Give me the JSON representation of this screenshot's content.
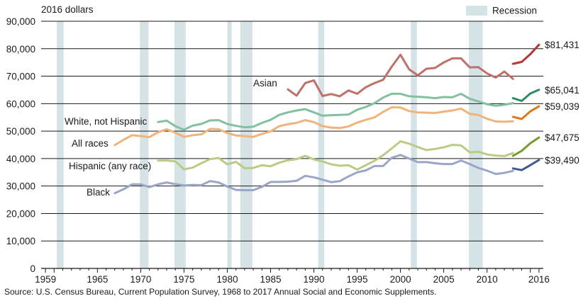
{
  "chart_data": {
    "type": "line",
    "title": "",
    "unit_label": "2016 dollars",
    "xlabel": "",
    "ylabel": "",
    "xlim": [
      1958.5,
      2016.5
    ],
    "ylim": [
      0,
      90000
    ],
    "x_ticks": [
      1959,
      1965,
      1970,
      1975,
      1980,
      1985,
      1990,
      1995,
      2000,
      2005,
      2010,
      2016
    ],
    "x_tick_labels": [
      "1959",
      "1965",
      "1970",
      "1975",
      "1980",
      "1985",
      "1990",
      "1995",
      "2000",
      "2005",
      "2010",
      "2016"
    ],
    "y_ticks": [
      0,
      10000,
      20000,
      30000,
      40000,
      50000,
      60000,
      70000,
      80000,
      90000
    ],
    "y_tick_labels": [
      "0",
      "10,000",
      "20,000",
      "30,000",
      "40,000",
      "50,000",
      "60,000",
      "70,000",
      "80,000",
      "90,000"
    ],
    "grid": "horizontal",
    "legend": {
      "label": "Recession",
      "position": "top-right",
      "color": "#d6e3e6"
    },
    "recessions": [
      [
        1960.3,
        1961.1
      ],
      [
        1969.9,
        1970.9
      ],
      [
        1973.9,
        1975.2
      ],
      [
        1980.0,
        1980.5
      ],
      [
        1981.5,
        1982.9
      ],
      [
        1990.5,
        1991.2
      ],
      [
        2001.2,
        2001.9
      ],
      [
        2007.9,
        2009.5
      ]
    ],
    "series": [
      {
        "name": "Asian",
        "color": "#c0706a",
        "break_color": "#b23838",
        "values": [
          [
            1987,
            65200
          ],
          [
            1988,
            62900
          ],
          [
            1989,
            67500
          ],
          [
            1990,
            68500
          ],
          [
            1991,
            62800
          ],
          [
            1992,
            63500
          ],
          [
            1993,
            62700
          ],
          [
            1994,
            64800
          ],
          [
            1995,
            63600
          ],
          [
            1996,
            66000
          ],
          [
            1997,
            67500
          ],
          [
            1998,
            68700
          ],
          [
            1999,
            73500
          ],
          [
            2000,
            77800
          ],
          [
            2001,
            72500
          ],
          [
            2002,
            70300
          ],
          [
            2003,
            72700
          ],
          [
            2004,
            73000
          ],
          [
            2005,
            75000
          ],
          [
            2006,
            76500
          ],
          [
            2007,
            76500
          ],
          [
            2008,
            73200
          ],
          [
            2009,
            73300
          ],
          [
            2010,
            71000
          ],
          [
            2011,
            69500
          ],
          [
            2012,
            71700
          ],
          [
            2013,
            69000
          ]
        ],
        "values_after_break": [
          [
            2013,
            74500
          ],
          [
            2014,
            75200
          ],
          [
            2015,
            78000
          ],
          [
            2016,
            81431
          ]
        ],
        "end_label": "$81,431"
      },
      {
        "name": "White, not Hispanic",
        "color": "#82c0a0",
        "break_color": "#2e8b62",
        "values": [
          [
            1972,
            53300
          ],
          [
            1973,
            53800
          ],
          [
            1974,
            51800
          ],
          [
            1975,
            50500
          ],
          [
            1976,
            52000
          ],
          [
            1977,
            52600
          ],
          [
            1978,
            53900
          ],
          [
            1979,
            54000
          ],
          [
            1980,
            52600
          ],
          [
            1981,
            51900
          ],
          [
            1982,
            51400
          ],
          [
            1983,
            51600
          ],
          [
            1984,
            53000
          ],
          [
            1985,
            54100
          ],
          [
            1986,
            55900
          ],
          [
            1987,
            56800
          ],
          [
            1988,
            57500
          ],
          [
            1989,
            58000
          ],
          [
            1990,
            56800
          ],
          [
            1991,
            55600
          ],
          [
            1992,
            55800
          ],
          [
            1993,
            55900
          ],
          [
            1994,
            56000
          ],
          [
            1995,
            57800
          ],
          [
            1996,
            58800
          ],
          [
            1997,
            60200
          ],
          [
            1998,
            62200
          ],
          [
            1999,
            63600
          ],
          [
            2000,
            63600
          ],
          [
            2001,
            62700
          ],
          [
            2002,
            62500
          ],
          [
            2003,
            62300
          ],
          [
            2004,
            62000
          ],
          [
            2005,
            62400
          ],
          [
            2006,
            62300
          ],
          [
            2007,
            63600
          ],
          [
            2008,
            61800
          ],
          [
            2009,
            60800
          ],
          [
            2010,
            59800
          ],
          [
            2011,
            59200
          ],
          [
            2012,
            59600
          ],
          [
            2013,
            60200
          ]
        ],
        "values_after_break": [
          [
            2013,
            62000
          ],
          [
            2014,
            61000
          ],
          [
            2015,
            63700
          ],
          [
            2016,
            65041
          ]
        ],
        "end_label": "$65,041"
      },
      {
        "name": "All races",
        "color": "#f0b47a",
        "break_color": "#e07820",
        "values": [
          [
            1967,
            44900
          ],
          [
            1968,
            46800
          ],
          [
            1969,
            48500
          ],
          [
            1970,
            48200
          ],
          [
            1971,
            47800
          ],
          [
            1972,
            49600
          ],
          [
            1973,
            50700
          ],
          [
            1974,
            49400
          ],
          [
            1975,
            47900
          ],
          [
            1976,
            48500
          ],
          [
            1977,
            48800
          ],
          [
            1978,
            50800
          ],
          [
            1979,
            50700
          ],
          [
            1980,
            49300
          ],
          [
            1981,
            48400
          ],
          [
            1982,
            48200
          ],
          [
            1983,
            47900
          ],
          [
            1984,
            49000
          ],
          [
            1985,
            49900
          ],
          [
            1986,
            51800
          ],
          [
            1987,
            52500
          ],
          [
            1988,
            53000
          ],
          [
            1989,
            54000
          ],
          [
            1990,
            53300
          ],
          [
            1991,
            51800
          ],
          [
            1992,
            51300
          ],
          [
            1993,
            51100
          ],
          [
            1994,
            51700
          ],
          [
            1995,
            53100
          ],
          [
            1996,
            54100
          ],
          [
            1997,
            55000
          ],
          [
            1998,
            57000
          ],
          [
            1999,
            58700
          ],
          [
            2000,
            58600
          ],
          [
            2001,
            57300
          ],
          [
            2002,
            56800
          ],
          [
            2003,
            56700
          ],
          [
            2004,
            56600
          ],
          [
            2005,
            57100
          ],
          [
            2006,
            57500
          ],
          [
            2007,
            58200
          ],
          [
            2008,
            56300
          ],
          [
            2009,
            55900
          ],
          [
            2010,
            54500
          ],
          [
            2011,
            53500
          ],
          [
            2012,
            53400
          ],
          [
            2013,
            53600
          ]
        ],
        "values_after_break": [
          [
            2013,
            55200
          ],
          [
            2014,
            54400
          ],
          [
            2015,
            57200
          ],
          [
            2016,
            59039
          ]
        ],
        "end_label": "$59,039"
      },
      {
        "name": "Hispanic (any race)",
        "color": "#b8cc84",
        "break_color": "#7a9a30",
        "values": [
          [
            1972,
            39300
          ],
          [
            1973,
            39300
          ],
          [
            1974,
            39000
          ],
          [
            1975,
            36100
          ],
          [
            1976,
            36700
          ],
          [
            1977,
            38300
          ],
          [
            1978,
            39800
          ],
          [
            1979,
            40200
          ],
          [
            1980,
            37900
          ],
          [
            1981,
            38800
          ],
          [
            1982,
            36500
          ],
          [
            1983,
            36600
          ],
          [
            1984,
            37600
          ],
          [
            1985,
            37200
          ],
          [
            1986,
            38500
          ],
          [
            1987,
            39400
          ],
          [
            1988,
            39800
          ],
          [
            1989,
            41000
          ],
          [
            1990,
            39700
          ],
          [
            1991,
            39000
          ],
          [
            1992,
            37900
          ],
          [
            1993,
            37400
          ],
          [
            1994,
            37600
          ],
          [
            1995,
            36000
          ],
          [
            1996,
            37600
          ],
          [
            1997,
            39200
          ],
          [
            1998,
            41200
          ],
          [
            1999,
            43700
          ],
          [
            2000,
            46300
          ],
          [
            2001,
            45400
          ],
          [
            2002,
            44200
          ],
          [
            2003,
            43100
          ],
          [
            2004,
            43500
          ],
          [
            2005,
            44100
          ],
          [
            2006,
            45000
          ],
          [
            2007,
            44800
          ],
          [
            2008,
            42300
          ],
          [
            2009,
            42500
          ],
          [
            2010,
            41500
          ],
          [
            2011,
            41100
          ],
          [
            2012,
            40900
          ],
          [
            2013,
            42000
          ]
        ],
        "values_after_break": [
          [
            2013,
            41000
          ],
          [
            2014,
            42800
          ],
          [
            2015,
            45600
          ],
          [
            2016,
            47675
          ]
        ],
        "end_label": "$47,675"
      },
      {
        "name": "Black",
        "color": "#9aa6c8",
        "break_color": "#3e5a96",
        "values": [
          [
            1967,
            27400
          ],
          [
            1968,
            28800
          ],
          [
            1969,
            30600
          ],
          [
            1970,
            30600
          ],
          [
            1971,
            29600
          ],
          [
            1972,
            30600
          ],
          [
            1973,
            31300
          ],
          [
            1974,
            30700
          ],
          [
            1975,
            30200
          ],
          [
            1976,
            30400
          ],
          [
            1977,
            30300
          ],
          [
            1978,
            31800
          ],
          [
            1979,
            31300
          ],
          [
            1980,
            29800
          ],
          [
            1981,
            28600
          ],
          [
            1982,
            28500
          ],
          [
            1983,
            28500
          ],
          [
            1984,
            29700
          ],
          [
            1985,
            31500
          ],
          [
            1986,
            31500
          ],
          [
            1987,
            31600
          ],
          [
            1988,
            31900
          ],
          [
            1989,
            33700
          ],
          [
            1990,
            33200
          ],
          [
            1991,
            32300
          ],
          [
            1992,
            31400
          ],
          [
            1993,
            31800
          ],
          [
            1994,
            33500
          ],
          [
            1995,
            35000
          ],
          [
            1996,
            35700
          ],
          [
            1997,
            37300
          ],
          [
            1998,
            37300
          ],
          [
            1999,
            40300
          ],
          [
            2000,
            41300
          ],
          [
            2001,
            40000
          ],
          [
            2002,
            38700
          ],
          [
            2003,
            38700
          ],
          [
            2004,
            38300
          ],
          [
            2005,
            38000
          ],
          [
            2006,
            38000
          ],
          [
            2007,
            39300
          ],
          [
            2008,
            38000
          ],
          [
            2009,
            36600
          ],
          [
            2010,
            35600
          ],
          [
            2011,
            34400
          ],
          [
            2012,
            34800
          ],
          [
            2013,
            35500
          ]
        ],
        "values_after_break": [
          [
            2013,
            36400
          ],
          [
            2014,
            35800
          ],
          [
            2015,
            37600
          ],
          [
            2016,
            39490
          ]
        ],
        "end_label": "$39,490"
      }
    ],
    "source_note": "Source: U.S. Census Bureau, Current Population Survey, 1968 to 2017 Annual Social and Economic Supplements."
  }
}
